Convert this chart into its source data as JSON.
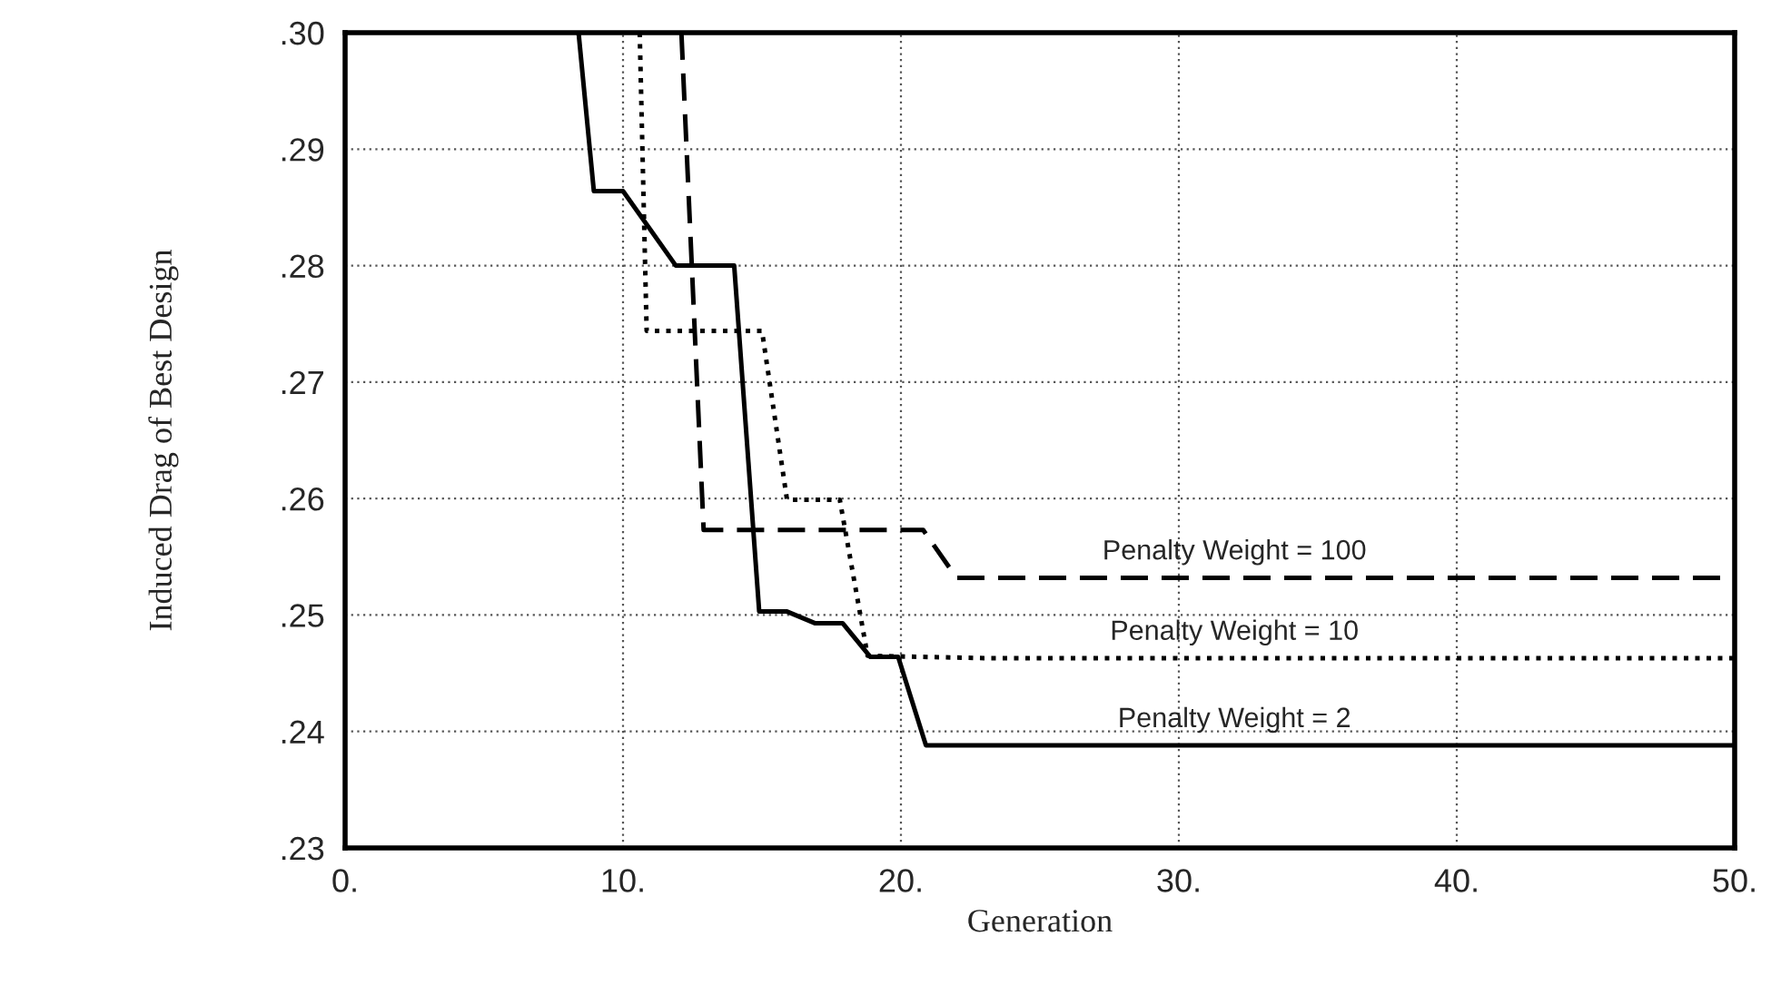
{
  "chart_data": {
    "type": "line",
    "xlabel": "Generation",
    "ylabel": "Induced Drag of Best Design",
    "xlim": [
      0,
      50
    ],
    "ylim": [
      0.23,
      0.3
    ],
    "xticks": [
      {
        "value": 0,
        "label": "0."
      },
      {
        "value": 10,
        "label": "10."
      },
      {
        "value": 20,
        "label": "20."
      },
      {
        "value": 30,
        "label": "30."
      },
      {
        "value": 40,
        "label": "40."
      },
      {
        "value": 50,
        "label": "50."
      }
    ],
    "yticks": [
      {
        "value": 0.23,
        "label": ".23"
      },
      {
        "value": 0.24,
        "label": ".24"
      },
      {
        "value": 0.25,
        "label": ".25"
      },
      {
        "value": 0.26,
        "label": ".26"
      },
      {
        "value": 0.27,
        "label": ".27"
      },
      {
        "value": 0.28,
        "label": ".28"
      },
      {
        "value": 0.29,
        "label": ".29"
      },
      {
        "value": 0.3,
        "label": ".30"
      }
    ],
    "grid": true,
    "legend": false,
    "marker": "none",
    "series": [
      {
        "name": "Penalty Weight = 100",
        "color": "#000000",
        "line_style": "dashed",
        "x": [
          12.1,
          12.9,
          20.8,
          22.0,
          50
        ],
        "values": [
          0.3,
          0.2573,
          0.2573,
          0.2532,
          0.2532
        ]
      },
      {
        "name": "Penalty Weight = 10",
        "color": "#000000",
        "line_style": "dotted",
        "x": [
          10.6,
          10.85,
          15.0,
          15.9,
          17.8,
          18.8,
          23.0,
          50
        ],
        "values": [
          0.3,
          0.2744,
          0.2744,
          0.2599,
          0.2599,
          0.2465,
          0.2463,
          0.2463
        ]
      },
      {
        "name": "Penalty Weight = 2",
        "color": "#000000",
        "line_style": "solid",
        "x": [
          8.4,
          8.95,
          10.0,
          11.9,
          14.0,
          14.9,
          15.9,
          16.9,
          17.9,
          18.9,
          19.9,
          20.9,
          50
        ],
        "values": [
          0.3,
          0.2864,
          0.2864,
          0.28,
          0.28,
          0.2503,
          0.2503,
          0.2493,
          0.2493,
          0.2464,
          0.2464,
          0.2388,
          0.2388
        ]
      }
    ]
  }
}
